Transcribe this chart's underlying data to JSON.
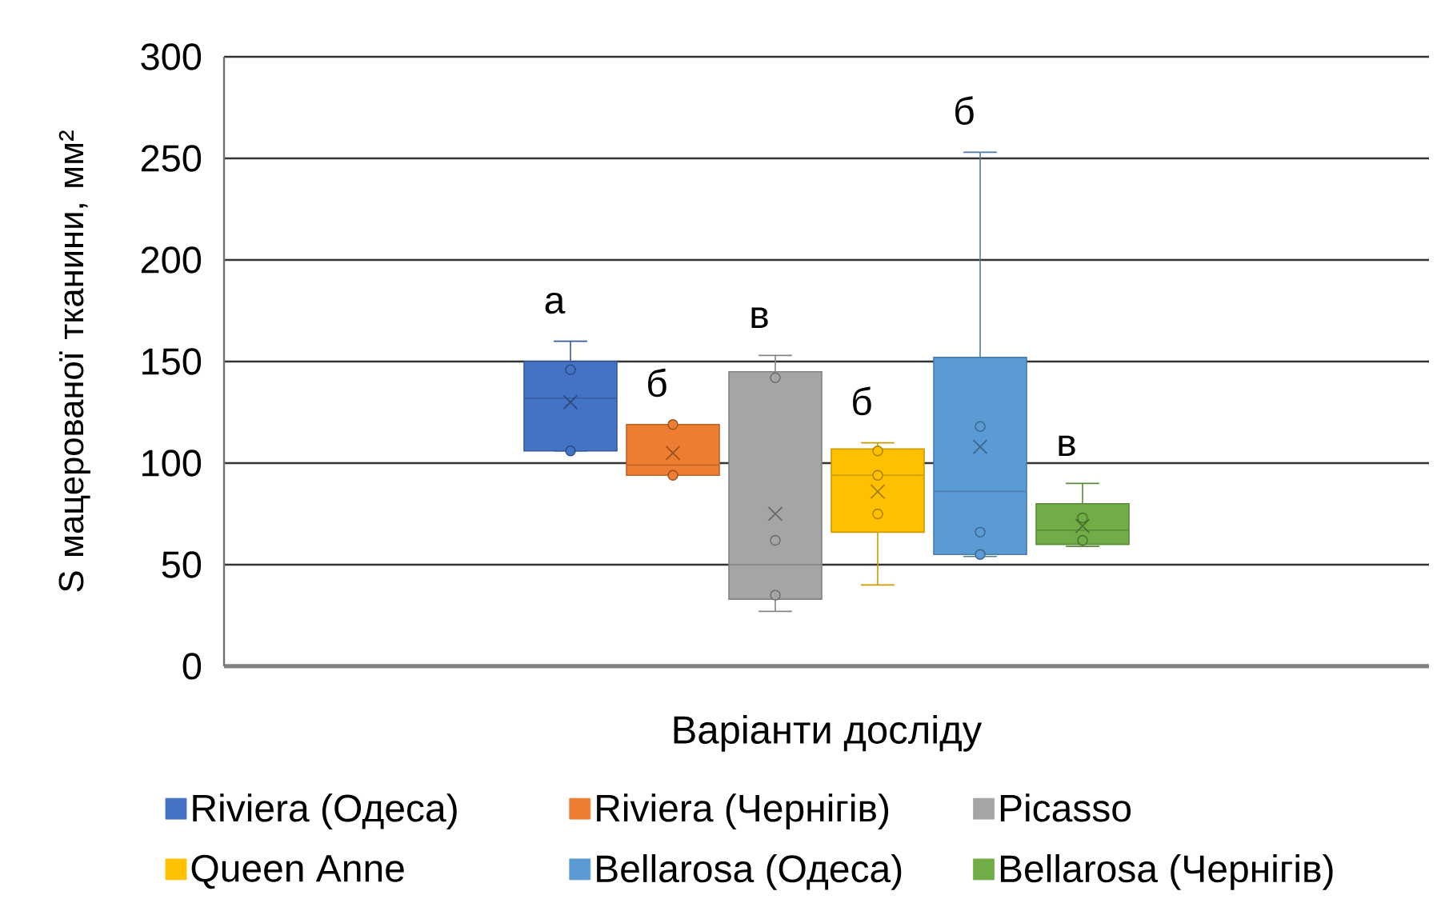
{
  "chart_data": {
    "type": "box",
    "xlabel": "Варіанти досліду",
    "ylabel": "S мацерованої тканини, мм²",
    "categories": [
      null
    ],
    "ylim": [
      0,
      300
    ],
    "yticks": [
      0,
      50,
      100,
      150,
      200,
      250,
      300
    ],
    "grid": "y",
    "legend": "bottom",
    "series": [
      {
        "name": "Riviera (Одеса)",
        "color": "#4472c4",
        "boxes": [
          {
            "low": 106,
            "q1": 106,
            "median": 132,
            "q3": 150,
            "high": 160,
            "mean": 130,
            "outliers": [
              146,
              106
            ]
          }
        ]
      },
      {
        "name": "Riviera (Чернігів)",
        "color": "#ed7d31",
        "boxes": [
          {
            "low": 94,
            "q1": 94,
            "median": 99,
            "q3": 119,
            "high": 119,
            "mean": 105,
            "outliers": [
              119,
              94
            ]
          }
        ]
      },
      {
        "name": "Picasso",
        "color": "#a5a5a5",
        "boxes": [
          {
            "low": 27,
            "q1": 33,
            "median": 50,
            "q3": 145,
            "high": 153,
            "mean": 75,
            "outliers": [
              142,
              62,
              35
            ]
          }
        ]
      },
      {
        "name": "Queen Anne",
        "color": "#ffc000",
        "boxes": [
          {
            "low": 40,
            "q1": 66,
            "median": 94,
            "q3": 107,
            "high": 110,
            "mean": 86,
            "outliers": [
              106,
              94,
              75
            ]
          }
        ]
      },
      {
        "name": "Bellarosa (Одеса)",
        "color": "#5b9bd5",
        "boxes": [
          {
            "low": 54,
            "q1": 55,
            "median": 86,
            "q3": 152,
            "high": 253,
            "mean": 108,
            "outliers": [
              118,
              66,
              55
            ]
          }
        ]
      },
      {
        "name": "Bellarosa (Чернігів)",
        "color": "#70ad47",
        "boxes": [
          {
            "low": 59,
            "q1": 60,
            "median": 67,
            "q3": 80,
            "high": 90,
            "mean": 69,
            "outliers": [
              73,
              62
            ]
          }
        ]
      }
    ],
    "annotations": [
      "а",
      "б",
      "в",
      "б",
      "б",
      "в"
    ]
  }
}
